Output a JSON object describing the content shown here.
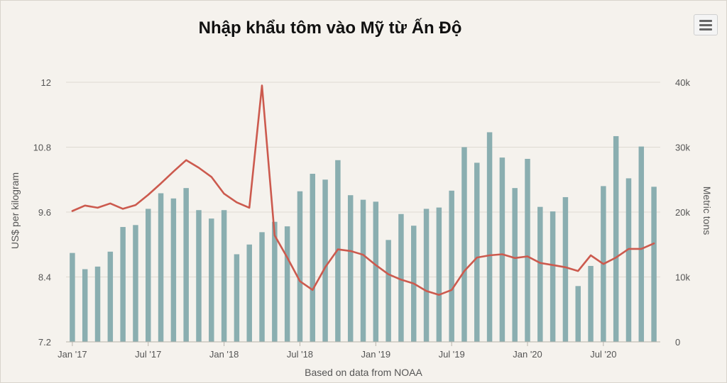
{
  "chart_data": {
    "type": "bar+line",
    "title": "Nhập khẩu tôm vào Mỹ từ Ấn Độ",
    "xlabel": "Based on data from NOAA",
    "ylabel_left": "US$ per kilogram",
    "ylabel_right": "Metric tons",
    "x_tick_labels": [
      "Jan '17",
      "Jul '17",
      "Jan '18",
      "Jul '18",
      "Jan '19",
      "Jul '19",
      "Jan '20",
      "Jul '20"
    ],
    "y_left_ticks": [
      "12",
      "10.8",
      "9.6",
      "8.4",
      "7.2"
    ],
    "y_right_ticks": [
      "40k",
      "30k",
      "20k",
      "10k",
      "0"
    ],
    "ylim_left": [
      7.2,
      12
    ],
    "ylim_right": [
      0,
      40000
    ],
    "grid": true,
    "categories": [
      "Jan '17",
      "Feb '17",
      "Mar '17",
      "Apr '17",
      "May '17",
      "Jun '17",
      "Jul '17",
      "Aug '17",
      "Sep '17",
      "Oct '17",
      "Nov '17",
      "Dec '17",
      "Jan '18",
      "Feb '18",
      "Mar '18",
      "Apr '18",
      "May '18",
      "Jun '18",
      "Jul '18",
      "Aug '18",
      "Sep '18",
      "Oct '18",
      "Nov '18",
      "Dec '18",
      "Jan '19",
      "Feb '19",
      "Mar '19",
      "Apr '19",
      "May '19",
      "Jun '19",
      "Jul '19",
      "Aug '19",
      "Sep '19",
      "Oct '19",
      "Nov '19",
      "Dec '19",
      "Jan '20",
      "Feb '20",
      "Mar '20",
      "Apr '20",
      "May '20",
      "Jun '20",
      "Jul '20",
      "Aug '20",
      "Sep '20",
      "Oct '20",
      "Nov '20"
    ],
    "series": [
      {
        "name": "Metric tons",
        "type": "bar",
        "axis": "right",
        "color": "#8aaeb0",
        "values": [
          13700,
          11200,
          11600,
          13900,
          17700,
          18000,
          20500,
          22900,
          22100,
          23700,
          20300,
          19000,
          20300,
          13500,
          15000,
          16900,
          18500,
          17800,
          23200,
          25900,
          25000,
          28000,
          22600,
          21900,
          21600,
          15700,
          19700,
          17900,
          20500,
          20700,
          23300,
          30000,
          27600,
          32300,
          28400,
          23700,
          28200,
          20800,
          20100,
          22300,
          8600,
          11700,
          24000,
          31700,
          25200,
          30100,
          23900
        ]
      },
      {
        "name": "US$ per kilogram",
        "type": "line",
        "axis": "left",
        "color": "#cc5a4e",
        "values": [
          9.62,
          9.72,
          9.68,
          9.76,
          9.66,
          9.73,
          9.92,
          10.13,
          10.35,
          10.56,
          10.42,
          10.25,
          9.94,
          9.78,
          9.68,
          11.94,
          9.17,
          8.76,
          8.32,
          8.16,
          8.58,
          8.91,
          8.88,
          8.81,
          8.62,
          8.45,
          8.35,
          8.28,
          8.14,
          8.07,
          8.16,
          8.51,
          8.76,
          8.8,
          8.82,
          8.75,
          8.78,
          8.66,
          8.62,
          8.58,
          8.51,
          8.8,
          8.64,
          8.76,
          8.92,
          8.92,
          9.02
        ]
      }
    ]
  },
  "ui": {
    "menu_icon": "hamburger-menu-icon"
  }
}
